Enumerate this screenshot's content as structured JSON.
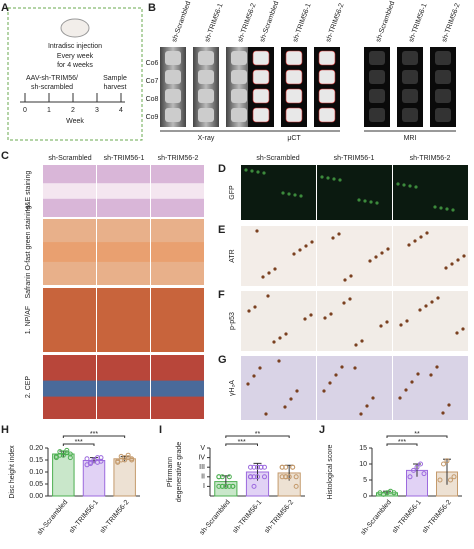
{
  "panels": {
    "A": {
      "label": "A",
      "injection": "Intradisc injection",
      "frequency": [
        "Every week",
        "for 4 weeks"
      ],
      "treatment": [
        "AAV-sh-TRIM56/",
        "sh-scrambled"
      ],
      "harvest": [
        "Sample",
        "harvest"
      ],
      "weeks": [
        "0",
        "1",
        "2",
        "3",
        "4"
      ],
      "axis_label": "Week"
    },
    "B": {
      "label": "B",
      "rows": [
        "Co6",
        "Co7",
        "Co8",
        "Co9"
      ],
      "groups": [
        {
          "title": "X-ray",
          "columns": [
            "sh-Scrambled",
            "sh-TRIM56-1",
            "sh-TRIM56-2"
          ]
        },
        {
          "title": "μCT",
          "columns": [
            "sh-Scrambled",
            "sh-TRIM56-1",
            "sh-TRIM56-2"
          ]
        },
        {
          "title": "MRI",
          "columns": [
            "sh-Scrambled",
            "sh-TRIM56-1",
            "sh-TRIM56-2"
          ]
        }
      ]
    },
    "C": {
      "label": "C",
      "columns": [
        "sh-Scrambled",
        "sh-TRIM56-1",
        "sh-TRIM56-2"
      ],
      "rows": [
        "H&E staining",
        "Safranin O-fast green staining",
        "1. NP/AF",
        "2. CEP"
      ]
    },
    "DG": {
      "columns": [
        "sh-Scrambled",
        "sh-TRIM56-1",
        "sh-TRIM56-2"
      ],
      "rows": [
        {
          "label": "D",
          "stain": "GFP"
        },
        {
          "label": "E",
          "stain": "ATR"
        },
        {
          "label": "F",
          "stain": "p-p53"
        },
        {
          "label": "G",
          "stain": "γH₂A"
        }
      ]
    }
  },
  "chart_data": [
    {
      "type": "bar",
      "panel_label": "H",
      "ylabel": [
        "Disc height index"
      ],
      "categories": [
        "sh-Scrambled",
        "sh-TRIM56-1",
        "sh-TRIM56-2"
      ],
      "colors": [
        "#4caf50",
        "#9c6ade",
        "#c49a6c"
      ],
      "values": [
        0.175,
        0.148,
        0.155
      ],
      "errors": [
        0.012,
        0.012,
        0.01
      ],
      "points": [
        [
          0.16,
          0.17,
          0.18,
          0.19,
          0.175,
          0.165,
          0.185,
          0.17,
          0.18,
          0.16
        ],
        [
          0.13,
          0.14,
          0.15,
          0.16,
          0.145,
          0.155,
          0.135,
          0.15,
          0.14,
          0.16
        ],
        [
          0.14,
          0.15,
          0.16,
          0.17,
          0.155,
          0.145,
          0.165,
          0.15,
          0.16,
          0.15
        ]
      ],
      "ylim": [
        0,
        0.2
      ],
      "yticks": [
        {
          "value": 0,
          "label": "0.00"
        },
        0.05,
        {
          "value": 0.1,
          "label": "0.10"
        },
        0.15,
        {
          "value": 0.2,
          "label": "0.20"
        }
      ],
      "significance": [
        "***",
        "***"
      ]
    },
    {
      "type": "bar",
      "panel_label": "I",
      "ylabel": [
        "Pfirrmann",
        "degenerative grade"
      ],
      "categories": [
        "sh-Scrambled",
        "sh-TRIM56-1",
        "sh-TRIM56-2"
      ],
      "colors": [
        "#4caf50",
        "#9c6ade",
        "#c49a6c"
      ],
      "values": [
        1.5,
        2.5,
        2.4
      ],
      "errors": [
        0.6,
        0.9,
        0.8
      ],
      "points": [
        [
          1,
          1,
          1,
          1,
          1,
          2,
          2,
          1,
          2,
          1,
          2,
          1
        ],
        [
          2,
          2,
          3,
          3,
          3,
          2,
          3,
          2,
          3,
          2,
          3,
          1
        ],
        [
          2,
          3,
          2,
          3,
          2,
          3,
          2,
          2,
          3,
          1,
          3,
          2
        ]
      ],
      "ylim": [
        0,
        5
      ],
      "yticks": [
        {
          "value": 1,
          "label": "I"
        },
        {
          "value": 2,
          "label": "II"
        },
        {
          "value": 3,
          "label": "III"
        },
        {
          "value": 4,
          "label": "IV"
        },
        {
          "value": 5,
          "label": "V"
        }
      ],
      "significance": [
        "***",
        "**"
      ]
    },
    {
      "type": "bar",
      "panel_label": "J",
      "ylabel": [
        "Histological score"
      ],
      "categories": [
        "sh-Scrambled",
        "sh-TRIM56-1",
        "sh-TRIM56-2"
      ],
      "colors": [
        "#4caf50",
        "#9c6ade",
        "#c49a6c"
      ],
      "values": [
        1,
        8,
        7.5
      ],
      "errors": [
        0.5,
        2,
        4
      ],
      "points": [
        [
          1,
          0.5,
          1,
          1.5,
          1
        ],
        [
          6,
          8,
          9,
          10,
          7
        ],
        [
          5,
          10,
          11,
          5,
          6
        ]
      ],
      "ylim": [
        0,
        15
      ],
      "yticks": [
        0,
        5,
        10,
        15
      ],
      "significance": [
        "***",
        "**"
      ]
    }
  ]
}
